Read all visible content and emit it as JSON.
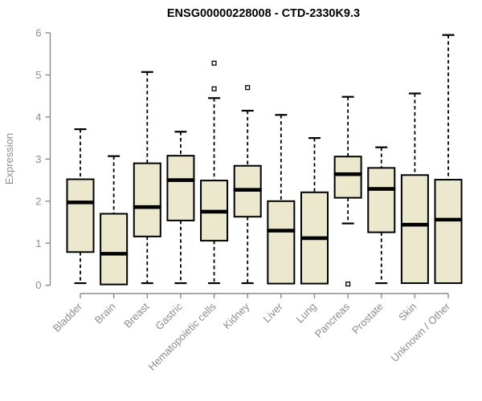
{
  "title": "ENSG00000228008 - CTD-2330K9.3",
  "colors": {
    "background": "#ffffff",
    "box_fill": "#ECE8CD",
    "box_stroke": "#000000",
    "median": "#000000",
    "whisker": "#000000",
    "outlier_stroke": "#000000",
    "outlier_fill": "#ffffff",
    "axis_line": "#8a8a8a",
    "tick_label": "#8c8c8c",
    "title_color": "#000000"
  },
  "chart_data": {
    "type": "boxplot",
    "title": "ENSG00000228008 - CTD-2330K9.3",
    "xlabel": "",
    "ylabel": "Expression",
    "ylim": [
      0,
      6
    ],
    "yticks": [
      0,
      1,
      2,
      3,
      4,
      5,
      6
    ],
    "grid": false,
    "legend": false,
    "categories": [
      "Bladder",
      "Brain",
      "Breast",
      "Gastric",
      "Hematopoietic cells",
      "Kidney",
      "Liver",
      "Lung",
      "Pancreas",
      "Prostate",
      "Skin",
      "Unknown / Other"
    ],
    "series": [
      {
        "name": "Bladder",
        "whisker_low": 0.05,
        "q1": 0.79,
        "median": 1.97,
        "q3": 2.52,
        "whisker_high": 3.71,
        "outliers": []
      },
      {
        "name": "Brain",
        "whisker_low": 0.02,
        "q1": 0.02,
        "median": 0.75,
        "q3": 1.7,
        "whisker_high": 3.07,
        "outliers": []
      },
      {
        "name": "Breast",
        "whisker_low": 0.05,
        "q1": 1.16,
        "median": 1.86,
        "q3": 2.9,
        "whisker_high": 5.07,
        "outliers": []
      },
      {
        "name": "Gastric",
        "whisker_low": 0.05,
        "q1": 1.54,
        "median": 2.5,
        "q3": 3.08,
        "whisker_high": 3.65,
        "outliers": []
      },
      {
        "name": "Hematopoietic cells",
        "whisker_low": 0.05,
        "q1": 1.06,
        "median": 1.75,
        "q3": 2.49,
        "whisker_high": 4.45,
        "outliers": [
          5.28,
          4.67
        ]
      },
      {
        "name": "Kidney",
        "whisker_low": 0.05,
        "q1": 1.63,
        "median": 2.27,
        "q3": 2.84,
        "whisker_high": 4.15,
        "outliers": [
          4.7
        ]
      },
      {
        "name": "Liver",
        "whisker_low": 0.04,
        "q1": 0.04,
        "median": 1.3,
        "q3": 2.0,
        "whisker_high": 4.05,
        "outliers": []
      },
      {
        "name": "Lung",
        "whisker_low": 0.04,
        "q1": 0.04,
        "median": 1.12,
        "q3": 2.21,
        "whisker_high": 3.5,
        "outliers": []
      },
      {
        "name": "Pancreas",
        "whisker_low": 1.47,
        "q1": 2.08,
        "median": 2.64,
        "q3": 3.06,
        "whisker_high": 4.48,
        "outliers": [
          0.03
        ]
      },
      {
        "name": "Prostate",
        "whisker_low": 0.05,
        "q1": 1.26,
        "median": 2.29,
        "q3": 2.79,
        "whisker_high": 3.28,
        "outliers": []
      },
      {
        "name": "Skin",
        "whisker_low": 0.05,
        "q1": 0.05,
        "median": 1.44,
        "q3": 2.62,
        "whisker_high": 4.56,
        "outliers": []
      },
      {
        "name": "Unknown / Other",
        "whisker_low": 0.05,
        "q1": 0.05,
        "median": 1.56,
        "q3": 2.51,
        "whisker_high": 5.95,
        "outliers": []
      }
    ]
  }
}
